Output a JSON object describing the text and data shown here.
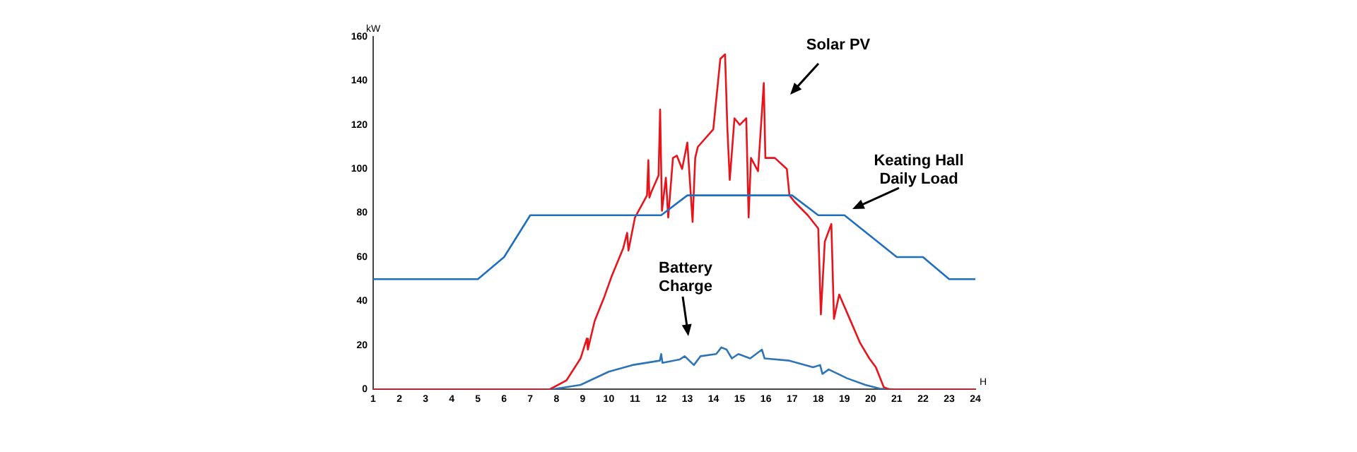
{
  "chart_data": {
    "type": "line",
    "xlabel": "H",
    "ylabel": "kW",
    "xlim": [
      1,
      24
    ],
    "xticks": [
      1,
      2,
      3,
      4,
      5,
      6,
      7,
      8,
      9,
      10,
      11,
      12,
      13,
      14,
      15,
      16,
      17,
      18,
      19,
      20,
      21,
      22,
      23,
      24
    ],
    "ylim": [
      0,
      160
    ],
    "yticks": [
      0,
      20,
      40,
      60,
      80,
      100,
      120,
      140,
      160
    ],
    "grid": false,
    "legend": false,
    "marker": "none",
    "line_style": "solid",
    "series": [
      {
        "color": "#1f6fc0",
        "x": [
          1,
          5,
          6,
          7,
          12,
          13,
          17,
          18,
          19,
          21,
          22,
          23,
          24
        ],
        "values": [
          50,
          50,
          60,
          79,
          79,
          88,
          88,
          79,
          79,
          60,
          60,
          50,
          50
        ]
      },
      {
        "color": "#e8141c",
        "x": [
          1,
          7.75,
          8.38,
          8.92,
          9.16,
          9.2,
          9.46,
          9.83,
          10.1,
          10.55,
          10.7,
          10.75,
          11.0,
          11.46,
          11.51,
          11.55,
          11.64,
          11.9,
          11.96,
          12.03,
          12.18,
          12.27,
          12.45,
          12.6,
          12.8,
          13.0,
          13.2,
          13.3,
          13.4,
          13.99,
          14.26,
          14.44,
          14.53,
          14.62,
          14.8,
          15.0,
          15.25,
          15.34,
          15.43,
          15.7,
          15.92,
          15.98,
          16.34,
          16.8,
          16.9,
          17.1,
          17.6,
          18.0,
          18.1,
          18.25,
          18.5,
          18.6,
          18.8,
          19.2,
          19.6,
          19.95,
          20.2,
          20.5,
          20.7,
          24
        ],
        "values": [
          0,
          0,
          4,
          14,
          23,
          18,
          31,
          42,
          51,
          64,
          71,
          63,
          78,
          88,
          104,
          87,
          90,
          97,
          127,
          81,
          96,
          78,
          105,
          106,
          100,
          112,
          76,
          105,
          110,
          118,
          150,
          152,
          118,
          95,
          123,
          120,
          123,
          78,
          105,
          99,
          139,
          105,
          105,
          100,
          88,
          85,
          79,
          73,
          34,
          67,
          75,
          32,
          43,
          32,
          21,
          14,
          10,
          1,
          0,
          0
        ]
      },
      {
        "color": "#2e75b6",
        "x": [
          1,
          7.84,
          8.92,
          10.0,
          10.9,
          11.95,
          12.0,
          12.05,
          12.7,
          12.9,
          13.25,
          13.5,
          14.1,
          14.3,
          14.5,
          14.7,
          14.95,
          15.4,
          15.85,
          15.95,
          16.9,
          17.8,
          18.07,
          18.16,
          18.4,
          19.1,
          19.8,
          20.35,
          20.9,
          24
        ],
        "values": [
          0,
          0,
          2,
          8,
          11,
          13,
          16,
          12,
          13.5,
          15,
          11,
          15,
          16,
          19,
          18,
          14,
          16,
          14,
          18,
          14,
          13,
          10,
          11,
          7,
          9,
          5,
          2,
          0.3,
          0,
          0
        ]
      }
    ],
    "annotations": [
      "Keating Hall\nDaily Load",
      "Solar PV",
      "Battery\nCharge"
    ]
  }
}
